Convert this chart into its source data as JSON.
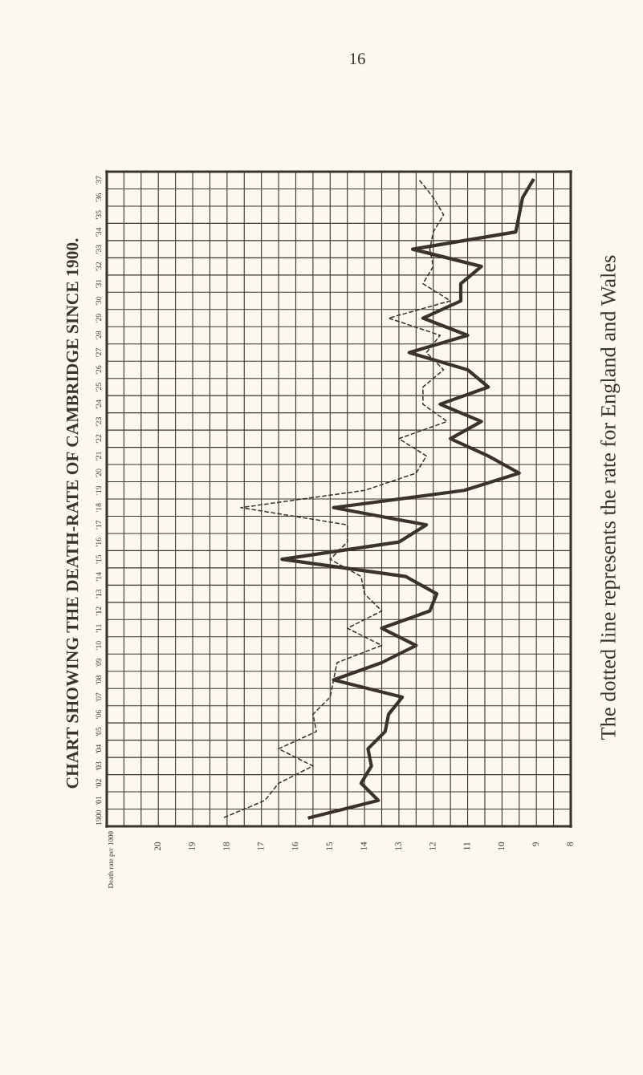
{
  "chart_data": {
    "type": "line",
    "orientation": "horizontal",
    "title": "CHART SHOWING THE DEATH-RATE OF CAMBRIDGE SINCE 1900.",
    "annotations": [
      "Death rate per 1000",
      "16",
      "The dotted line represents the rate for England and Wales"
    ],
    "categories": [
      "'37",
      "'36",
      "'35",
      "'34",
      "'33",
      "'32",
      "'31",
      "'30",
      "'29",
      "'28",
      "'27",
      "'26",
      "'25",
      "'24",
      "'23",
      "'22",
      "'21",
      "'20",
      "'19",
      "'18",
      "'17",
      "'16",
      "'15",
      "'14",
      "'13",
      "'12",
      "'11",
      "'10",
      "'09",
      "'08",
      "'07",
      "'06",
      "'05",
      "'04",
      "'03",
      "'02",
      "'01",
      "1900"
    ],
    "series": [
      {
        "color": "#3b322c",
        "line_style": "solid",
        "values": [
          9.1,
          9.4,
          9.5,
          9.6,
          12.6,
          10.6,
          11.2,
          11.2,
          12.3,
          11.0,
          12.7,
          11.0,
          10.4,
          11.8,
          10.6,
          11.5,
          10.4,
          9.5,
          11.1,
          14.9,
          12.2,
          13.0,
          16.4,
          12.8,
          11.9,
          12.1,
          13.5,
          12.5,
          13.5,
          14.9,
          12.9,
          13.3,
          13.4,
          13.9,
          13.8,
          14.1,
          13.6,
          15.6
        ]
      },
      {
        "color": "#3b322c",
        "line_style": "dashed",
        "values": [
          12.4,
          12.0,
          11.7,
          12.0,
          12.1,
          12.0,
          12.3,
          11.5,
          13.3,
          11.8,
          12.2,
          11.7,
          12.3,
          12.3,
          11.6,
          13.0,
          12.2,
          12.5,
          14.0,
          17.6,
          14.5,
          14.5,
          15.0,
          14.1,
          14.0,
          13.5,
          14.5,
          13.5,
          14.8,
          14.9,
          15.0,
          15.5,
          15.4,
          16.5,
          15.5,
          16.5,
          16.9,
          18.1
        ]
      }
    ],
    "xlim": [
      21.5,
      8
    ],
    "xticks": [
      20,
      19,
      18,
      17,
      16,
      15,
      14,
      13,
      12,
      11,
      10,
      9,
      8
    ],
    "grid": true,
    "marker": "none"
  }
}
